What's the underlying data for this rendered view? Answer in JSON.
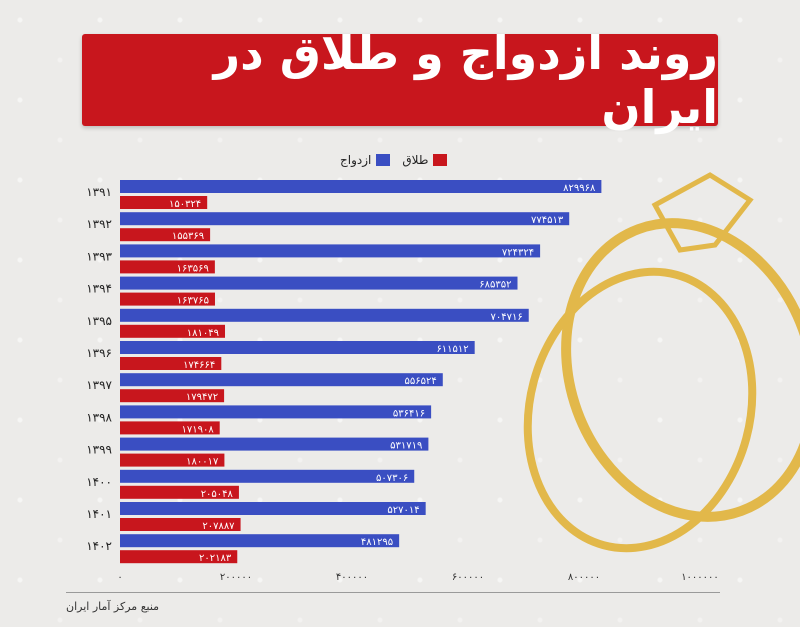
{
  "title": "روند ازدواج و طلاق در ایران",
  "source": "منبع مرکز آمار ایران",
  "colors": {
    "marriage": "#3a4ec2",
    "divorce": "#c8161d",
    "title_bg": "#c8161d",
    "ring": "#e2b84a"
  },
  "legend": {
    "marriage": "ازدواج",
    "divorce": "طلاق"
  },
  "chart_data": {
    "type": "bar",
    "orientation": "horizontal",
    "categories": [
      "۱۳۹۱",
      "۱۳۹۲",
      "۱۳۹۳",
      "۱۳۹۴",
      "۱۳۹۵",
      "۱۳۹۶",
      "۱۳۹۷",
      "۱۳۹۸",
      "۱۳۹۹",
      "۱۴۰۰",
      "۱۴۰۱",
      "۱۴۰۲"
    ],
    "series": [
      {
        "name": "ازدواج",
        "values": [
          829968,
          774513,
          724324,
          685352,
          704716,
          611512,
          556524,
          536416,
          531719,
          507306,
          527014,
          481295
        ],
        "labels": [
          "۸۲۹۹۶۸",
          "۷۷۴۵۱۳",
          "۷۲۴۳۲۴",
          "۶۸۵۳۵۲",
          "۷۰۴۷۱۶",
          "۶۱۱۵۱۲",
          "۵۵۶۵۲۴",
          "۵۳۶۴۱۶",
          "۵۳۱۷۱۹",
          "۵۰۷۳۰۶",
          "۵۲۷۰۱۴",
          "۴۸۱۲۹۵"
        ]
      },
      {
        "name": "طلاق",
        "values": [
          150324,
          155369,
          163569,
          163765,
          181049,
          174664,
          179472,
          171908,
          180017,
          205048,
          207887,
          202183
        ],
        "labels": [
          "۱۵۰۳۲۴",
          "۱۵۵۳۶۹",
          "۱۶۳۵۶۹",
          "۱۶۳۷۶۵",
          "۱۸۱۰۴۹",
          "۱۷۴۶۶۴",
          "۱۷۹۴۷۲",
          "۱۷۱۹۰۸",
          "۱۸۰۰۱۷",
          "۲۰۵۰۴۸",
          "۲۰۷۸۸۷",
          "۲۰۲۱۸۳"
        ]
      }
    ],
    "xlim": [
      0,
      1000000
    ],
    "xticks": [
      0,
      200000,
      400000,
      600000,
      800000,
      1000000
    ],
    "xtick_labels": [
      "۰",
      "۲۰۰۰۰۰",
      "۴۰۰۰۰۰",
      "۶۰۰۰۰۰",
      "۸۰۰۰۰۰",
      "۱۰۰۰۰۰۰"
    ],
    "legend_position": "top",
    "grid": false
  }
}
